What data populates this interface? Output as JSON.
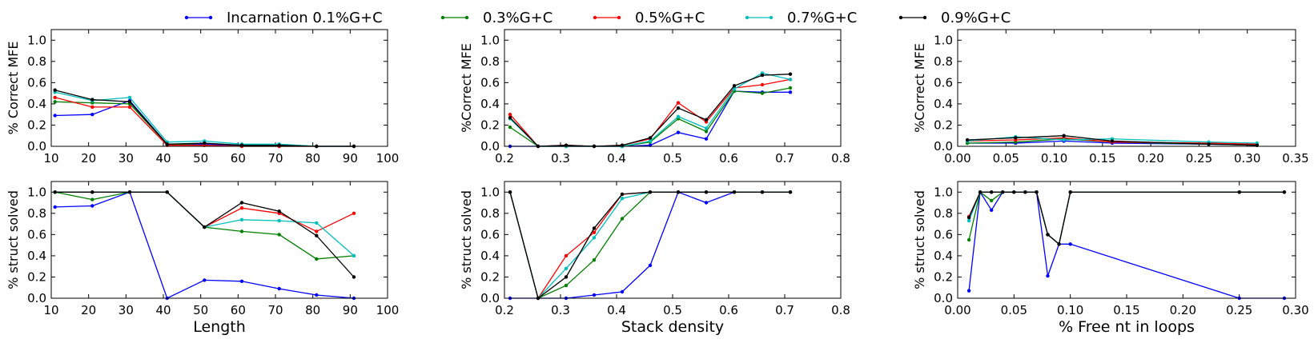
{
  "legend": {
    "placement": "top-center",
    "entries": [
      {
        "label": "Incarnation  0.1%G+C",
        "color": "#0000ff"
      },
      {
        "label": "0.3%G+C",
        "color": "#008000"
      },
      {
        "label": "0.5%G+C",
        "color": "#ff0000"
      },
      {
        "label": "0.7%G+C",
        "color": "#00bfbf"
      },
      {
        "label": "0.9%G+C",
        "color": "#000000"
      }
    ]
  },
  "chart_data": [
    {
      "type": "line",
      "ylabel": "% Correct MFE",
      "xlabel": "",
      "xlim": [
        10,
        100
      ],
      "ylim": [
        0,
        1.1
      ],
      "xticks": [
        10,
        20,
        30,
        40,
        50,
        60,
        70,
        80,
        90,
        100
      ],
      "yticks": [
        0.0,
        0.2,
        0.4,
        0.6,
        0.8,
        1.0
      ],
      "xdecimals": 0,
      "ydecimals": 1,
      "x": [
        11,
        21,
        31,
        41,
        51,
        61,
        71,
        81,
        91
      ],
      "series": [
        {
          "color": "#0000ff",
          "values": [
            0.29,
            0.3,
            0.43,
            0.02,
            0.02,
            0.01,
            0.01,
            0.0,
            0.0
          ]
        },
        {
          "color": "#008000",
          "values": [
            0.42,
            0.41,
            0.4,
            0.02,
            0.01,
            0.0,
            0.0,
            0.0,
            0.0
          ]
        },
        {
          "color": "#ff0000",
          "values": [
            0.46,
            0.37,
            0.37,
            0.01,
            0.01,
            0.0,
            0.0,
            0.0,
            0.0
          ]
        },
        {
          "color": "#00bfbf",
          "values": [
            0.51,
            0.43,
            0.46,
            0.04,
            0.05,
            0.02,
            0.02,
            0.0,
            0.0
          ]
        },
        {
          "color": "#000000",
          "values": [
            0.53,
            0.44,
            0.42,
            0.02,
            0.03,
            0.01,
            0.01,
            0.0,
            0.0
          ]
        }
      ]
    },
    {
      "type": "line",
      "ylabel": "%Correct MFE",
      "xlabel": "",
      "xlim": [
        0.2,
        0.8
      ],
      "ylim": [
        0,
        1.1
      ],
      "xticks": [
        0.2,
        0.3,
        0.4,
        0.5,
        0.6,
        0.7,
        0.8
      ],
      "yticks": [
        0.0,
        0.2,
        0.4,
        0.6,
        0.8,
        1.0
      ],
      "xdecimals": 1,
      "ydecimals": 1,
      "x": [
        0.21,
        0.26,
        0.31,
        0.36,
        0.41,
        0.46,
        0.51,
        0.56,
        0.61,
        0.66,
        0.71
      ],
      "series": [
        {
          "color": "#0000ff",
          "values": [
            0.0,
            0.0,
            0.0,
            0.0,
            0.0,
            0.01,
            0.13,
            0.07,
            0.52,
            0.51,
            0.51
          ]
        },
        {
          "color": "#008000",
          "values": [
            0.18,
            0.0,
            0.0,
            0.0,
            0.0,
            0.04,
            0.26,
            0.14,
            0.52,
            0.5,
            0.55
          ]
        },
        {
          "color": "#ff0000",
          "values": [
            0.3,
            0.0,
            0.01,
            0.0,
            0.01,
            0.07,
            0.41,
            0.23,
            0.55,
            0.58,
            0.63
          ]
        },
        {
          "color": "#00bfbf",
          "values": [
            0.26,
            0.0,
            0.0,
            0.0,
            0.0,
            0.05,
            0.28,
            0.17,
            0.54,
            0.69,
            0.63
          ]
        },
        {
          "color": "#000000",
          "values": [
            0.27,
            0.0,
            0.01,
            0.0,
            0.01,
            0.08,
            0.36,
            0.25,
            0.57,
            0.67,
            0.68
          ]
        }
      ]
    },
    {
      "type": "line",
      "ylabel": "%Correct MFE",
      "xlabel": "",
      "xlim": [
        0.0,
        0.35
      ],
      "ylim": [
        0,
        1.1
      ],
      "xticks": [
        0.0,
        0.05,
        0.1,
        0.15,
        0.2,
        0.25,
        0.3,
        0.35
      ],
      "yticks": [
        0.0,
        0.2,
        0.4,
        0.6,
        0.8,
        1.0
      ],
      "xdecimals": 2,
      "ydecimals": 1,
      "x": [
        0.01,
        0.06,
        0.11,
        0.16,
        0.26,
        0.31
      ],
      "series": [
        {
          "color": "#0000ff",
          "values": [
            0.03,
            0.03,
            0.05,
            0.03,
            0.02,
            0.01
          ]
        },
        {
          "color": "#008000",
          "values": [
            0.03,
            0.04,
            0.07,
            0.04,
            0.02,
            0.01
          ]
        },
        {
          "color": "#ff0000",
          "values": [
            0.05,
            0.06,
            0.08,
            0.04,
            0.03,
            0.02
          ]
        },
        {
          "color": "#00bfbf",
          "values": [
            0.05,
            0.09,
            0.06,
            0.07,
            0.04,
            0.03
          ]
        },
        {
          "color": "#000000",
          "values": [
            0.06,
            0.08,
            0.1,
            0.05,
            0.02,
            0.01
          ]
        }
      ]
    },
    {
      "type": "line",
      "ylabel": "% struct solved",
      "xlabel": "Length",
      "xlim": [
        10,
        100
      ],
      "ylim": [
        0,
        1.1
      ],
      "xticks": [
        10,
        20,
        30,
        40,
        50,
        60,
        70,
        80,
        90,
        100
      ],
      "yticks": [
        0.0,
        0.2,
        0.4,
        0.6,
        0.8,
        1.0
      ],
      "xdecimals": 0,
      "ydecimals": 1,
      "x": [
        11,
        21,
        31,
        41,
        51,
        61,
        71,
        81,
        91
      ],
      "series": [
        {
          "color": "#0000ff",
          "values": [
            0.86,
            0.87,
            1.0,
            0.0,
            0.17,
            0.16,
            0.09,
            0.03,
            0.0
          ]
        },
        {
          "color": "#008000",
          "values": [
            1.0,
            0.93,
            1.0,
            1.0,
            0.67,
            0.63,
            0.6,
            0.37,
            0.4
          ]
        },
        {
          "color": "#ff0000",
          "values": [
            1.0,
            1.0,
            1.0,
            1.0,
            0.67,
            0.85,
            0.8,
            0.63,
            0.8
          ]
        },
        {
          "color": "#00bfbf",
          "values": [
            1.0,
            1.0,
            1.0,
            1.0,
            0.67,
            0.74,
            0.73,
            0.71,
            0.4
          ]
        },
        {
          "color": "#000000",
          "values": [
            1.0,
            1.0,
            1.0,
            1.0,
            0.67,
            0.9,
            0.82,
            0.59,
            0.2
          ]
        }
      ]
    },
    {
      "type": "line",
      "ylabel": "% struct solved",
      "xlabel": "Stack density",
      "xlim": [
        0.2,
        0.8
      ],
      "ylim": [
        0,
        1.1
      ],
      "xticks": [
        0.2,
        0.3,
        0.4,
        0.5,
        0.6,
        0.7,
        0.8
      ],
      "yticks": [
        0.0,
        0.2,
        0.4,
        0.6,
        0.8,
        1.0
      ],
      "xdecimals": 1,
      "ydecimals": 1,
      "x": [
        0.21,
        0.26,
        0.31,
        0.36,
        0.41,
        0.46,
        0.51,
        0.56,
        0.61,
        0.66,
        0.71
      ],
      "series": [
        {
          "color": "#0000ff",
          "values": [
            0.0,
            0.0,
            0.0,
            0.03,
            0.06,
            0.31,
            1.0,
            0.9,
            1.0,
            1.0,
            1.0
          ]
        },
        {
          "color": "#008000",
          "values": [
            1.0,
            0.0,
            0.12,
            0.36,
            0.75,
            1.0,
            1.0,
            1.0,
            1.0,
            1.0,
            1.0
          ]
        },
        {
          "color": "#ff0000",
          "values": [
            1.0,
            0.0,
            0.4,
            0.62,
            0.98,
            1.0,
            1.0,
            1.0,
            1.0,
            1.0,
            1.0
          ]
        },
        {
          "color": "#00bfbf",
          "values": [
            1.0,
            0.0,
            0.28,
            0.57,
            0.94,
            1.0,
            1.0,
            1.0,
            1.0,
            1.0,
            1.0
          ]
        },
        {
          "color": "#000000",
          "values": [
            1.0,
            0.0,
            0.2,
            0.66,
            0.98,
            1.0,
            1.0,
            1.0,
            1.0,
            1.0,
            1.0
          ]
        }
      ]
    },
    {
      "type": "line",
      "ylabel": "% struct solved",
      "xlabel": "% Free nt in loops",
      "xlim": [
        0.0,
        0.3
      ],
      "ylim": [
        0,
        1.1
      ],
      "xticks": [
        0.0,
        0.05,
        0.1,
        0.15,
        0.2,
        0.25,
        0.3
      ],
      "yticks": [
        0.0,
        0.2,
        0.4,
        0.6,
        0.8,
        1.0
      ],
      "xdecimals": 2,
      "ydecimals": 1,
      "x": [
        0.01,
        0.02,
        0.03,
        0.04,
        0.05,
        0.06,
        0.07,
        0.08,
        0.09,
        0.1,
        0.25,
        0.29
      ],
      "series": [
        {
          "color": "#0000ff",
          "values": [
            0.07,
            1.0,
            0.83,
            1.0,
            1.0,
            1.0,
            1.0,
            0.21,
            0.51,
            0.51,
            0.0,
            0.0
          ]
        },
        {
          "color": "#008000",
          "values": [
            0.55,
            1.0,
            0.92,
            1.0,
            1.0,
            1.0,
            1.0,
            0.6,
            0.51,
            1.0,
            1.0,
            1.0
          ]
        },
        {
          "color": "#ff0000",
          "values": [
            0.77,
            1.0,
            1.0,
            1.0,
            1.0,
            1.0,
            1.0,
            0.6,
            0.51,
            1.0,
            1.0,
            1.0
          ]
        },
        {
          "color": "#00bfbf",
          "values": [
            0.73,
            1.0,
            1.0,
            1.0,
            1.0,
            1.0,
            1.0,
            0.6,
            0.51,
            1.0,
            1.0,
            1.0
          ]
        },
        {
          "color": "#000000",
          "values": [
            0.76,
            1.0,
            1.0,
            1.0,
            1.0,
            1.0,
            1.0,
            0.6,
            0.51,
            1.0,
            1.0,
            1.0
          ]
        }
      ]
    }
  ]
}
